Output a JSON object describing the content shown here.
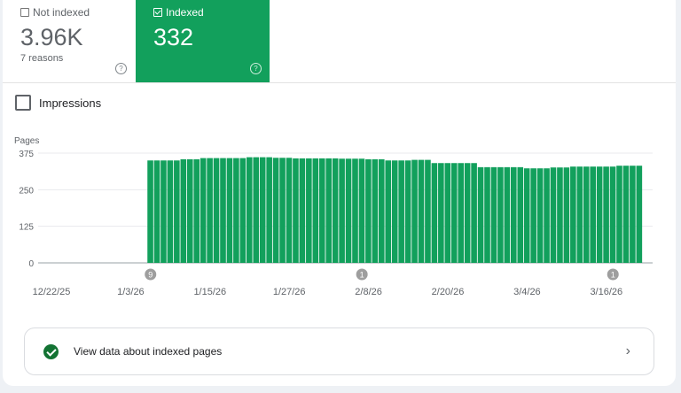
{
  "tiles": {
    "not_indexed": {
      "label": "Not indexed",
      "value": "3.96K",
      "sub": "7 reasons",
      "checked": false
    },
    "indexed": {
      "label": "Indexed",
      "value": "332",
      "checked": true
    }
  },
  "impressions_label": "Impressions",
  "link": {
    "label": "View data about indexed pages",
    "icon": "check-circle-icon"
  },
  "colors": {
    "indexed": "#12a05c",
    "annotation": "#9e9e9e"
  },
  "chart_data": {
    "type": "bar",
    "ylabel": "Pages",
    "ylim": [
      0,
      375
    ],
    "yticks": [
      0,
      125,
      250,
      375
    ],
    "grid": true,
    "xticks": [
      {
        "label": "12/22/25",
        "date": "2025-12-22"
      },
      {
        "label": "1/3/26",
        "date": "2026-01-03"
      },
      {
        "label": "1/15/26",
        "date": "2026-01-15"
      },
      {
        "label": "1/27/26",
        "date": "2026-01-27"
      },
      {
        "label": "2/8/26",
        "date": "2026-02-08"
      },
      {
        "label": "2/20/26",
        "date": "2026-02-20"
      },
      {
        "label": "3/4/26",
        "date": "2026-03-04"
      },
      {
        "label": "3/16/26",
        "date": "2026-03-16"
      }
    ],
    "x": [
      "2026-01-06",
      "2026-01-07",
      "2026-01-08",
      "2026-01-09",
      "2026-01-10",
      "2026-01-11",
      "2026-01-12",
      "2026-01-13",
      "2026-01-14",
      "2026-01-15",
      "2026-01-16",
      "2026-01-17",
      "2026-01-18",
      "2026-01-19",
      "2026-01-20",
      "2026-01-21",
      "2026-01-22",
      "2026-01-23",
      "2026-01-24",
      "2026-01-25",
      "2026-01-26",
      "2026-01-27",
      "2026-01-28",
      "2026-01-29",
      "2026-01-30",
      "2026-01-31",
      "2026-02-01",
      "2026-02-02",
      "2026-02-03",
      "2026-02-04",
      "2026-02-05",
      "2026-02-06",
      "2026-02-07",
      "2026-02-08",
      "2026-02-09",
      "2026-02-10",
      "2026-02-11",
      "2026-02-12",
      "2026-02-13",
      "2026-02-14",
      "2026-02-15",
      "2026-02-16",
      "2026-02-17",
      "2026-02-18",
      "2026-02-19",
      "2026-02-20",
      "2026-02-21",
      "2026-02-22",
      "2026-02-23",
      "2026-02-24",
      "2026-02-25",
      "2026-02-26",
      "2026-02-27",
      "2026-02-28",
      "2026-03-01",
      "2026-03-02",
      "2026-03-03",
      "2026-03-04",
      "2026-03-05",
      "2026-03-06",
      "2026-03-07",
      "2026-03-08",
      "2026-03-09",
      "2026-03-10",
      "2026-03-11",
      "2026-03-12",
      "2026-03-13",
      "2026-03-14",
      "2026-03-15",
      "2026-03-16",
      "2026-03-17",
      "2026-03-18",
      "2026-03-19",
      "2026-03-20",
      "2026-03-21"
    ],
    "series": [
      {
        "values": [
          350,
          350,
          350,
          350,
          350,
          354,
          354,
          354,
          358,
          358,
          358,
          358,
          358,
          358,
          358,
          361,
          361,
          361,
          361,
          359,
          359,
          359,
          357,
          357,
          357,
          357,
          357,
          357,
          357,
          356,
          356,
          356,
          356,
          354,
          354,
          354,
          350,
          350,
          350,
          350,
          352,
          352,
          352,
          341,
          341,
          341,
          341,
          341,
          341,
          341,
          327,
          327,
          327,
          327,
          327,
          327,
          327,
          323,
          323,
          323,
          323,
          326,
          326,
          326,
          329,
          329,
          329,
          329,
          329,
          329,
          329,
          332,
          332,
          332,
          332
        ]
      }
    ],
    "annotations": [
      {
        "date": "2026-01-06",
        "label": "9"
      },
      {
        "date": "2026-02-07",
        "label": "1"
      },
      {
        "date": "2026-03-17",
        "label": "1"
      }
    ]
  }
}
